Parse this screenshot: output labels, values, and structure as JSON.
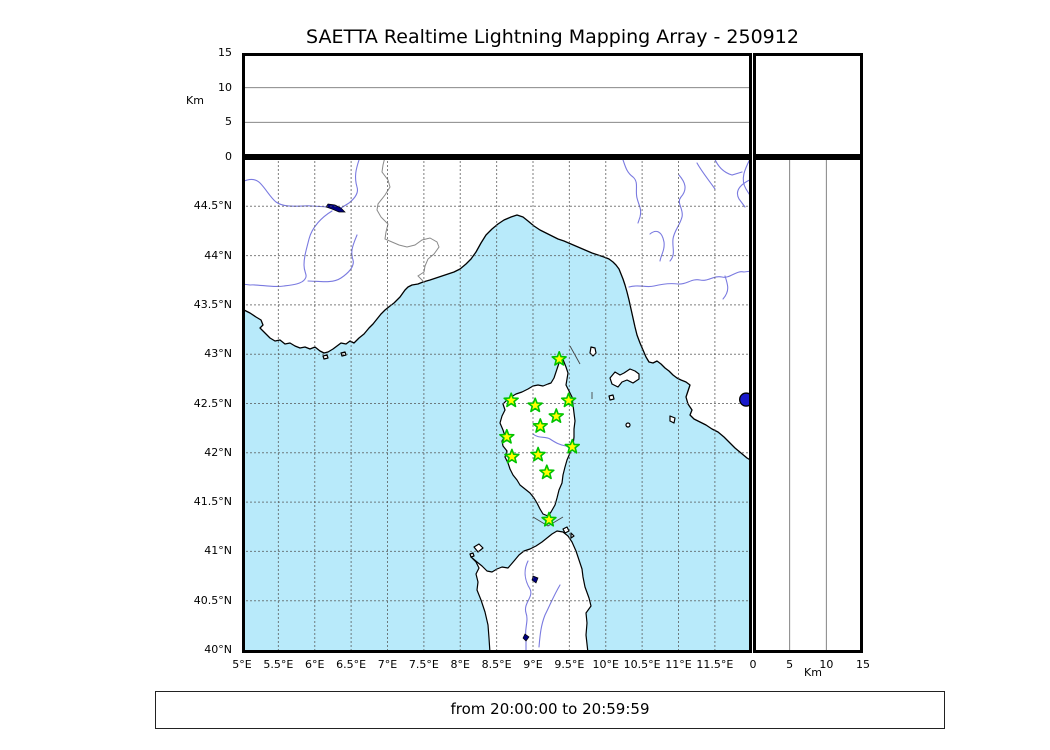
{
  "title": "SAETTA Realtime Lightning Mapping Array - 250912",
  "time_range_label": "from 20:00:00 to 20:59:59",
  "colors": {
    "sea": "#b8eafa",
    "land": "#ffffff",
    "coast": "#000000",
    "river": "#7a7ae0",
    "lake": "#000080",
    "admin-border": "#8a8a8a",
    "grid": "#555555",
    "panel-grid": "#777777",
    "star-fill": "#ffff00",
    "star-edge": "#00c400",
    "event-marker": "#1a1acc",
    "frame": "#000000"
  },
  "axes": {
    "km_axis_label": "Km",
    "top_panel": {
      "unit": "Km",
      "range": [
        0,
        15
      ],
      "ticks": [
        {
          "label": "0",
          "value": 0
        },
        {
          "label": "5",
          "value": 5
        },
        {
          "label": "10",
          "value": 10
        },
        {
          "label": "15",
          "value": 15
        }
      ],
      "gridlines": [
        5,
        10
      ]
    },
    "right_panel": {
      "unit": "Km",
      "range": [
        0,
        15
      ],
      "ticks": [
        {
          "label": "0",
          "value": 0
        },
        {
          "label": "5",
          "value": 5
        },
        {
          "label": "10",
          "value": 10
        },
        {
          "label": "15",
          "value": 15
        }
      ],
      "gridlines": [
        5,
        10
      ]
    },
    "lat_ticks": [
      {
        "label": "44.5°N",
        "value": 44.5
      },
      {
        "label": "44°N",
        "value": 44
      },
      {
        "label": "43.5°N",
        "value": 43.5
      },
      {
        "label": "43°N",
        "value": 43
      },
      {
        "label": "42.5°N",
        "value": 42.5
      },
      {
        "label": "42°N",
        "value": 42
      },
      {
        "label": "41.5°N",
        "value": 41.5
      },
      {
        "label": "41°N",
        "value": 41
      },
      {
        "label": "40.5°N",
        "value": 40.5
      },
      {
        "label": "40°N",
        "value": 40
      }
    ],
    "lon_ticks": [
      {
        "label": "5°E",
        "value": 5
      },
      {
        "label": "5.5°E",
        "value": 5.5
      },
      {
        "label": "6°E",
        "value": 6
      },
      {
        "label": "6.5°E",
        "value": 6.5
      },
      {
        "label": "7°E",
        "value": 7
      },
      {
        "label": "7.5°E",
        "value": 7.5
      },
      {
        "label": "8°E",
        "value": 8
      },
      {
        "label": "8.5°E",
        "value": 8.5
      },
      {
        "label": "9°E",
        "value": 9
      },
      {
        "label": "9.5°E",
        "value": 9.5
      },
      {
        "label": "10°E",
        "value": 10
      },
      {
        "label": "10.5°E",
        "value": 10.5
      },
      {
        "label": "11°E",
        "value": 11
      },
      {
        "label": "11.5°E",
        "value": 11.5
      }
    ]
  },
  "chart_data": {
    "type": "map",
    "title": "SAETTA Realtime Lightning Mapping Array - 250912",
    "time_window": {
      "from": "20:00:00",
      "to": "20:59:59"
    },
    "map_panel": {
      "lon_range": [
        5,
        12.01
      ],
      "lat_range": [
        40,
        45
      ],
      "grid_step_deg": 0.5,
      "grid": "dashed",
      "region": "Corsica / NW Mediterranean (S France, Liguria, Tuscany, Sardinia, Elba)"
    },
    "stations": [
      {
        "lon": 9.36,
        "lat": 42.95
      },
      {
        "lon": 8.7,
        "lat": 42.53
      },
      {
        "lon": 9.03,
        "lat": 42.48
      },
      {
        "lon": 9.49,
        "lat": 42.53
      },
      {
        "lon": 9.32,
        "lat": 42.37
      },
      {
        "lon": 9.1,
        "lat": 42.27
      },
      {
        "lon": 8.64,
        "lat": 42.16
      },
      {
        "lon": 9.54,
        "lat": 42.06
      },
      {
        "lon": 8.71,
        "lat": 41.96
      },
      {
        "lon": 9.07,
        "lat": 41.98
      },
      {
        "lon": 9.19,
        "lat": 41.8
      },
      {
        "lon": 9.22,
        "lat": 41.32
      }
    ],
    "event_marker": {
      "lon": 11.93,
      "lat": 42.54,
      "shape": "circle"
    },
    "altitude_panels": {
      "range_km": [
        0,
        15
      ],
      "ticks_km": [
        0,
        5,
        10,
        15
      ],
      "data": "empty"
    }
  }
}
